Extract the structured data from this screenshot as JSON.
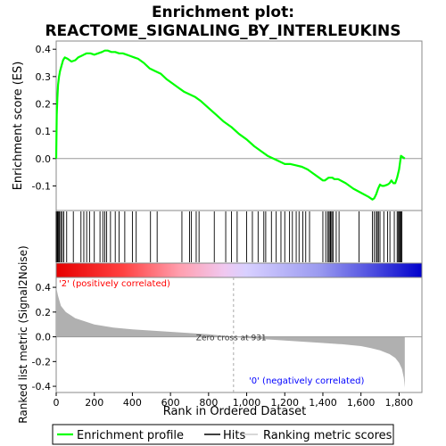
{
  "chart_data": {
    "type": "line",
    "title": "Enrichment plot:",
    "subtitle": "REACTOME_SIGNALING_BY_INTERLEUKINS",
    "colors": {
      "es_line": "#00ff00",
      "hits": "#000000",
      "metric_fill": "#b0b0b0",
      "zero_line": "#999999",
      "pos_label": "#ff0000",
      "neg_label": "#0000ff"
    },
    "es_panel": {
      "ylabel": "Enrichment score (ES)",
      "ylim": [
        -0.19,
        0.43
      ],
      "xlim": [
        0,
        1920
      ],
      "yticks": [
        -0.1,
        0.0,
        0.1,
        0.2,
        0.3,
        0.4
      ],
      "ytick_labels": [
        "-0.1",
        "0.0",
        "0.1",
        "0.2",
        "0.3",
        "0.4"
      ],
      "x": [
        0,
        3,
        6,
        10,
        15,
        20,
        28,
        36,
        45,
        60,
        80,
        100,
        115,
        130,
        145,
        160,
        180,
        200,
        220,
        240,
        255,
        270,
        290,
        310,
        330,
        350,
        370,
        390,
        410,
        430,
        460,
        490,
        520,
        550,
        580,
        610,
        640,
        670,
        700,
        730,
        760,
        800,
        840,
        880,
        920,
        960,
        1000,
        1040,
        1080,
        1110,
        1140,
        1170,
        1200,
        1230,
        1260,
        1290,
        1320,
        1350,
        1380,
        1400,
        1410,
        1420,
        1430,
        1440,
        1450,
        1460,
        1470,
        1480,
        1520,
        1560,
        1600,
        1640,
        1660,
        1670,
        1680,
        1690,
        1700,
        1710,
        1720,
        1740,
        1750,
        1760,
        1770,
        1780,
        1790,
        1800,
        1810,
        1830
      ],
      "es": [
        0.0,
        0.16,
        0.22,
        0.27,
        0.3,
        0.32,
        0.34,
        0.36,
        0.37,
        0.365,
        0.355,
        0.36,
        0.37,
        0.375,
        0.38,
        0.385,
        0.385,
        0.38,
        0.385,
        0.39,
        0.395,
        0.395,
        0.39,
        0.39,
        0.385,
        0.385,
        0.38,
        0.375,
        0.37,
        0.365,
        0.35,
        0.33,
        0.32,
        0.31,
        0.29,
        0.275,
        0.26,
        0.245,
        0.235,
        0.225,
        0.21,
        0.185,
        0.16,
        0.135,
        0.115,
        0.09,
        0.07,
        0.045,
        0.025,
        0.01,
        0.0,
        -0.01,
        -0.02,
        -0.02,
        -0.025,
        -0.03,
        -0.04,
        -0.055,
        -0.07,
        -0.08,
        -0.08,
        -0.075,
        -0.07,
        -0.07,
        -0.07,
        -0.075,
        -0.075,
        -0.075,
        -0.09,
        -0.11,
        -0.125,
        -0.14,
        -0.15,
        -0.145,
        -0.13,
        -0.11,
        -0.095,
        -0.1,
        -0.1,
        -0.095,
        -0.09,
        -0.08,
        -0.09,
        -0.09,
        -0.07,
        -0.04,
        0.01,
        0.0
      ]
    },
    "hits": [
      0,
      5,
      9,
      14,
      18,
      25,
      32,
      40,
      55,
      90,
      130,
      145,
      160,
      175,
      200,
      230,
      245,
      255,
      265,
      285,
      310,
      330,
      360,
      400,
      420,
      495,
      530,
      660,
      700,
      710,
      735,
      750,
      830,
      890,
      920,
      950,
      1000,
      1030,
      1060,
      1090,
      1100,
      1130,
      1155,
      1180,
      1200,
      1225,
      1240,
      1260,
      1275,
      1295,
      1310,
      1330,
      1400,
      1415,
      1425,
      1432,
      1438,
      1442,
      1448,
      1455,
      1470,
      1485,
      1590,
      1660,
      1670,
      1680,
      1686,
      1692,
      1700,
      1720,
      1740,
      1752,
      1775,
      1790,
      1795,
      1800,
      1805,
      1810,
      1815
    ],
    "metric_panel": {
      "ylabel": "Ranked list metric (Signal2Noise)",
      "xlabel": "Rank in Ordered Dataset",
      "ylim": [
        -0.45,
        0.48
      ],
      "yticks": [
        -0.4,
        -0.2,
        0.0,
        0.2,
        0.4
      ],
      "ytick_labels": [
        "-0.4",
        "-0.2",
        "0.0",
        "0.2",
        "0.4"
      ],
      "xticks": [
        0,
        200,
        400,
        600,
        800,
        1000,
        1200,
        1400,
        1600,
        1800
      ],
      "xtick_labels": [
        "0",
        "200",
        "400",
        "600",
        "800",
        "1,000",
        "1,200",
        "1,400",
        "1,600",
        "1,800"
      ],
      "x": [
        0,
        10,
        25,
        50,
        100,
        200,
        300,
        400,
        500,
        600,
        700,
        800,
        931,
        1000,
        1100,
        1200,
        1300,
        1400,
        1500,
        1600,
        1650,
        1700,
        1750,
        1780,
        1800,
        1815,
        1825,
        1830
      ],
      "metric": [
        0.4,
        0.33,
        0.25,
        0.2,
        0.15,
        0.1,
        0.075,
        0.06,
        0.05,
        0.04,
        0.03,
        0.02,
        0.0,
        -0.01,
        -0.02,
        -0.03,
        -0.04,
        -0.05,
        -0.06,
        -0.075,
        -0.09,
        -0.11,
        -0.14,
        -0.17,
        -0.21,
        -0.26,
        -0.33,
        -0.41
      ],
      "zero_cross": 931,
      "zero_cross_label": "Zero cross at 931",
      "pos_label": "'2' (positively correlated)",
      "neg_label": "'0' (negatively correlated)"
    },
    "legend": {
      "placement": "bottom",
      "items": [
        {
          "label": "Enrichment profile",
          "color": "#00ff00"
        },
        {
          "label": "Hits",
          "color": "#000000"
        },
        {
          "label": "Ranking metric scores",
          "color": "#cccccc"
        }
      ]
    }
  }
}
